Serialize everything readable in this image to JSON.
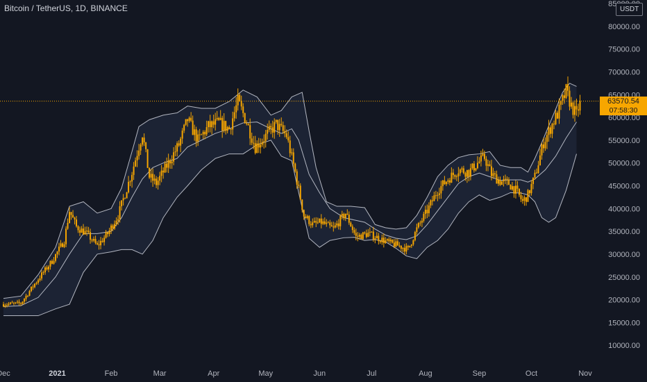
{
  "header": {
    "title": "Bitcoin / TetherUS, 1D, BINANCE",
    "unit_badge": "USDT"
  },
  "last_price": {
    "value": "63570.54",
    "countdown": "07:58:30"
  },
  "colors": {
    "background": "#131722",
    "candle": "#f7a600",
    "band_line": "#c4c8d2",
    "band_fill": "#1e2637",
    "axis_text": "#b2b5be",
    "price_line": "#f7a600"
  },
  "chart_data": {
    "type": "candlestick",
    "title": "Bitcoin / TetherUS, 1D, BINANCE",
    "indicator": "Bollinger Bands",
    "ylim": [
      5000,
      85000
    ],
    "y_ticks": [
      10000,
      15000,
      20000,
      25000,
      30000,
      35000,
      40000,
      45000,
      50000,
      55000,
      60000,
      65000,
      70000,
      75000,
      80000,
      85000
    ],
    "y_tick_labels": [
      "10000.00",
      "15000.00",
      "20000.00",
      "25000.00",
      "30000.00",
      "35000.00",
      "40000.00",
      "45000.00",
      "50000.00",
      "55000.00",
      "60000.00",
      "65000.00",
      "70000.00",
      "75000.00",
      "80000.00",
      "85000.00"
    ],
    "x_labels": [
      {
        "label": "Dec",
        "day": 0,
        "bold": false
      },
      {
        "label": "2021",
        "day": 31,
        "bold": true
      },
      {
        "label": "Feb",
        "day": 62,
        "bold": false
      },
      {
        "label": "Mar",
        "day": 90,
        "bold": false
      },
      {
        "label": "Apr",
        "day": 121,
        "bold": false
      },
      {
        "label": "May",
        "day": 151,
        "bold": false
      },
      {
        "label": "Jun",
        "day": 182,
        "bold": false
      },
      {
        "label": "Jul",
        "day": 212,
        "bold": false
      },
      {
        "label": "Aug",
        "day": 243,
        "bold": false
      },
      {
        "label": "Sep",
        "day": 274,
        "bold": false
      },
      {
        "label": "Oct",
        "day": 304,
        "bold": false
      },
      {
        "label": "Nov",
        "day": 335,
        "bold": false
      }
    ],
    "day_range": [
      0,
      335
    ],
    "last_price": 63570.54,
    "price_anchors": [
      [
        0,
        19000
      ],
      [
        10,
        19200
      ],
      [
        18,
        23500
      ],
      [
        28,
        28500
      ],
      [
        35,
        33000
      ],
      [
        38,
        39500
      ],
      [
        42,
        36000
      ],
      [
        48,
        34500
      ],
      [
        54,
        31800
      ],
      [
        60,
        34500
      ],
      [
        66,
        38500
      ],
      [
        74,
        48000
      ],
      [
        80,
        56500
      ],
      [
        84,
        47000
      ],
      [
        88,
        45500
      ],
      [
        95,
        50000
      ],
      [
        101,
        54000
      ],
      [
        106,
        59500
      ],
      [
        112,
        55000
      ],
      [
        118,
        58000
      ],
      [
        124,
        58800
      ],
      [
        130,
        57500
      ],
      [
        135,
        63500
      ],
      [
        140,
        59000
      ],
      [
        145,
        53500
      ],
      [
        150,
        55500
      ],
      [
        157,
        58500
      ],
      [
        163,
        56000
      ],
      [
        168,
        48000
      ],
      [
        173,
        38500
      ],
      [
        178,
        36500
      ],
      [
        183,
        37000
      ],
      [
        190,
        35500
      ],
      [
        197,
        39000
      ],
      [
        203,
        33800
      ],
      [
        210,
        34500
      ],
      [
        216,
        33500
      ],
      [
        222,
        32500
      ],
      [
        228,
        31800
      ],
      [
        233,
        31000
      ],
      [
        238,
        35500
      ],
      [
        244,
        39500
      ],
      [
        250,
        44000
      ],
      [
        256,
        46500
      ],
      [
        262,
        48500
      ],
      [
        268,
        48000
      ],
      [
        273,
        50000
      ],
      [
        277,
        51200
      ],
      [
        281,
        47500
      ],
      [
        286,
        46000
      ],
      [
        291,
        45500
      ],
      [
        295,
        44000
      ],
      [
        299,
        41500
      ],
      [
        302,
        43000
      ],
      [
        306,
        47000
      ],
      [
        311,
        54500
      ],
      [
        316,
        58500
      ],
      [
        320,
        61500
      ],
      [
        324,
        65800
      ],
      [
        327,
        62500
      ],
      [
        330,
        60500
      ],
      [
        332,
        63570.54
      ]
    ],
    "bollinger": {
      "upper": [
        [
          0,
          20300
        ],
        [
          10,
          20800
        ],
        [
          20,
          25500
        ],
        [
          30,
          31500
        ],
        [
          38,
          40500
        ],
        [
          46,
          41500
        ],
        [
          54,
          39000
        ],
        [
          62,
          40000
        ],
        [
          68,
          44500
        ],
        [
          74,
          52500
        ],
        [
          78,
          58000
        ],
        [
          84,
          59500
        ],
        [
          92,
          60500
        ],
        [
          100,
          61000
        ],
        [
          106,
          62500
        ],
        [
          114,
          62000
        ],
        [
          122,
          62000
        ],
        [
          130,
          63500
        ],
        [
          138,
          66000
        ],
        [
          146,
          64500
        ],
        [
          154,
          60500
        ],
        [
          160,
          61500
        ],
        [
          166,
          64500
        ],
        [
          172,
          65500
        ],
        [
          176,
          57000
        ],
        [
          180,
          49000
        ],
        [
          186,
          41500
        ],
        [
          192,
          40500
        ],
        [
          200,
          40500
        ],
        [
          208,
          40200
        ],
        [
          214,
          36500
        ],
        [
          220,
          35800
        ],
        [
          226,
          35500
        ],
        [
          232,
          35800
        ],
        [
          238,
          38500
        ],
        [
          244,
          42500
        ],
        [
          250,
          47000
        ],
        [
          256,
          49500
        ],
        [
          262,
          51200
        ],
        [
          268,
          51800
        ],
        [
          274,
          52000
        ],
        [
          280,
          52500
        ],
        [
          286,
          49500
        ],
        [
          292,
          49000
        ],
        [
          298,
          49000
        ],
        [
          302,
          48000
        ],
        [
          306,
          51000
        ],
        [
          310,
          54500
        ],
        [
          316,
          60000
        ],
        [
          322,
          65500
        ],
        [
          326,
          67500
        ],
        [
          330,
          66800
        ]
      ],
      "middle": [
        [
          0,
          18500
        ],
        [
          10,
          18700
        ],
        [
          20,
          20500
        ],
        [
          30,
          25000
        ],
        [
          38,
          30000
        ],
        [
          46,
          34500
        ],
        [
          54,
          34500
        ],
        [
          62,
          35000
        ],
        [
          68,
          38000
        ],
        [
          74,
          42500
        ],
        [
          80,
          46500
        ],
        [
          86,
          49000
        ],
        [
          92,
          50000
        ],
        [
          100,
          51000
        ],
        [
          106,
          53500
        ],
        [
          114,
          55000
        ],
        [
          122,
          56500
        ],
        [
          130,
          57500
        ],
        [
          138,
          58800
        ],
        [
          146,
          59000
        ],
        [
          154,
          57500
        ],
        [
          160,
          56500
        ],
        [
          166,
          57500
        ],
        [
          170,
          55000
        ],
        [
          176,
          47500
        ],
        [
          182,
          43500
        ],
        [
          188,
          40000
        ],
        [
          196,
          38000
        ],
        [
          202,
          37500
        ],
        [
          208,
          37000
        ],
        [
          214,
          35500
        ],
        [
          220,
          34200
        ],
        [
          226,
          33500
        ],
        [
          232,
          33200
        ],
        [
          238,
          34000
        ],
        [
          244,
          36500
        ],
        [
          250,
          39500
        ],
        [
          256,
          42500
        ],
        [
          262,
          45500
        ],
        [
          268,
          47000
        ],
        [
          274,
          47800
        ],
        [
          280,
          47000
        ],
        [
          286,
          46200
        ],
        [
          292,
          46300
        ],
        [
          298,
          46300
        ],
        [
          302,
          45800
        ],
        [
          306,
          46500
        ],
        [
          312,
          48500
        ],
        [
          318,
          51500
        ],
        [
          324,
          55500
        ],
        [
          330,
          59000
        ]
      ],
      "lower": [
        [
          0,
          16500
        ],
        [
          10,
          16500
        ],
        [
          20,
          16500
        ],
        [
          30,
          18000
        ],
        [
          38,
          19000
        ],
        [
          46,
          26000
        ],
        [
          54,
          30000
        ],
        [
          62,
          30500
        ],
        [
          68,
          31000
        ],
        [
          74,
          31000
        ],
        [
          80,
          30000
        ],
        [
          86,
          33000
        ],
        [
          92,
          38000
        ],
        [
          100,
          42500
        ],
        [
          106,
          45000
        ],
        [
          114,
          48500
        ],
        [
          122,
          51000
        ],
        [
          130,
          52000
        ],
        [
          138,
          52000
        ],
        [
          146,
          54000
        ],
        [
          154,
          55000
        ],
        [
          160,
          51500
        ],
        [
          166,
          50500
        ],
        [
          170,
          43500
        ],
        [
          176,
          33500
        ],
        [
          182,
          31500
        ],
        [
          188,
          33000
        ],
        [
          196,
          33600
        ],
        [
          202,
          33700
        ],
        [
          208,
          33000
        ],
        [
          214,
          33200
        ],
        [
          220,
          32700
        ],
        [
          226,
          31300
        ],
        [
          232,
          29600
        ],
        [
          238,
          29000
        ],
        [
          244,
          31500
        ],
        [
          250,
          33000
        ],
        [
          256,
          35500
        ],
        [
          262,
          39000
        ],
        [
          268,
          41500
        ],
        [
          274,
          43000
        ],
        [
          280,
          41800
        ],
        [
          286,
          42500
        ],
        [
          292,
          43500
        ],
        [
          298,
          43400
        ],
        [
          302,
          43000
        ],
        [
          306,
          41500
        ],
        [
          310,
          38000
        ],
        [
          314,
          37000
        ],
        [
          318,
          38000
        ],
        [
          324,
          44000
        ],
        [
          330,
          52000
        ]
      ]
    }
  }
}
